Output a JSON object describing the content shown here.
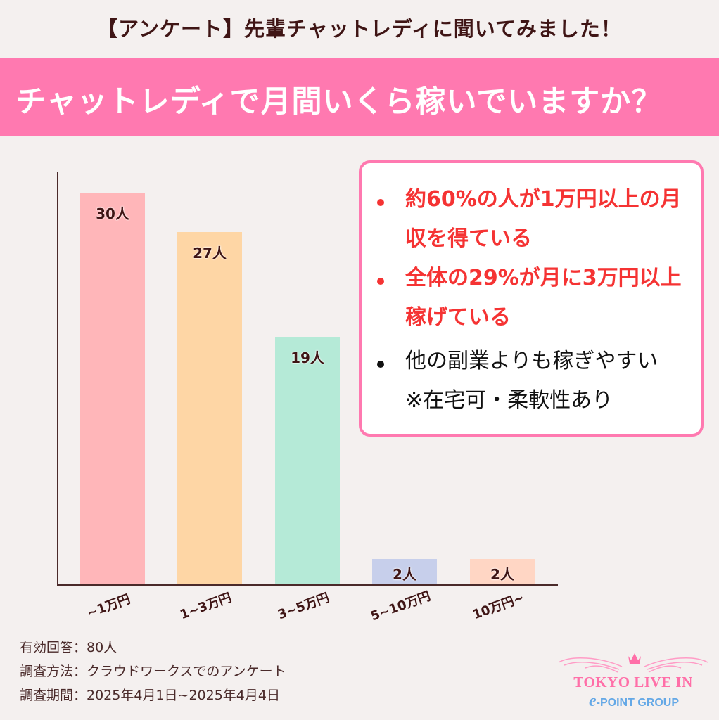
{
  "header": {
    "title": "【アンケート】先輩チャットレディに聞いてみました！",
    "question": "チャットレディで月間いくら稼いでいますか？"
  },
  "chart_data": {
    "type": "bar",
    "title": "チャットレディで月間いくら稼いでいますか？",
    "xlabel": "",
    "ylabel": "",
    "categories": [
      "~1万円",
      "1~3万円",
      "3~5万円",
      "5~10万円",
      "10万円~"
    ],
    "values": [
      30,
      27,
      19,
      2,
      2
    ],
    "value_labels": [
      "30人",
      "27人",
      "19人",
      "2人",
      "2人"
    ],
    "colors": [
      "#ffb6b9",
      "#fed6a5",
      "#b5ead7",
      "#c7cfeb",
      "#ffd6c4"
    ],
    "unit": "人",
    "grid": false,
    "legend": "none",
    "ylim": [
      0,
      30
    ]
  },
  "info_box": {
    "bullets": [
      {
        "text": "約60%の人が1万円以上の月収を得ている",
        "style": "red"
      },
      {
        "text": "全体の29%が月に3万円以上稼げている",
        "style": "red"
      },
      {
        "text": "他の副業よりも稼ぎやすい　※在宅可・柔軟性あり",
        "style": "black"
      }
    ]
  },
  "notes": {
    "responses": "有効回答：80人",
    "method": "調査方法：クラウドワークスでのアンケート",
    "period": "調査期間：2025年4月1日~2025年4月4日"
  },
  "logo": {
    "name": "TOKYO LIVE IN",
    "group_e": "e",
    "group_rest": "-POINT GROUP"
  },
  "colors": {
    "banner": "#ff79b0",
    "accent_red": "#f53333",
    "background": "#f4f0ef"
  }
}
